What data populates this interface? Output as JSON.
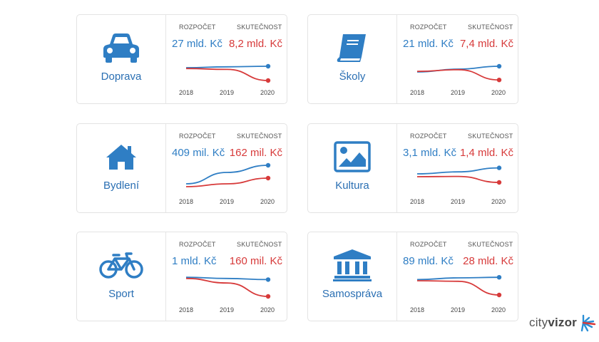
{
  "headers": {
    "budget": "ROZPOČET",
    "actual": "SKUTEČNOST"
  },
  "years": [
    "2018",
    "2019",
    "2020"
  ],
  "colors": {
    "budget": "#2f7ec4",
    "actual": "#d73a3a",
    "icon": "#2f7ec4"
  },
  "cards": [
    {
      "title": "Doprava",
      "icon": "car-icon",
      "budget": "27 mld. Kč",
      "actual": "8,2 mld. Kč",
      "budget_series": [
        0.55,
        0.58,
        0.6
      ],
      "actual_series": [
        0.52,
        0.49,
        0.1
      ]
    },
    {
      "title": "Školy",
      "icon": "book-icon",
      "budget": "21 mld. Kč",
      "actual": "7,4 mld. Kč",
      "budget_series": [
        0.4,
        0.5,
        0.6
      ],
      "actual_series": [
        0.42,
        0.48,
        0.12
      ]
    },
    {
      "title": "Bydlení",
      "icon": "house-icon",
      "budget": "409 mil. Kč",
      "actual": "162 mil. Kč",
      "budget_series": [
        0.3,
        0.7,
        0.95
      ],
      "actual_series": [
        0.2,
        0.3,
        0.5
      ]
    },
    {
      "title": "Kultura",
      "icon": "picture-icon",
      "budget": "3,1 mld. Kč",
      "actual": "1,4 mld. Kč",
      "budget_series": [
        0.65,
        0.72,
        0.86
      ],
      "actual_series": [
        0.55,
        0.56,
        0.35
      ]
    },
    {
      "title": "Sport",
      "icon": "bicycle-icon",
      "budget": "1 mld. Kč",
      "actual": "160 mil. Kč",
      "budget_series": [
        0.82,
        0.78,
        0.74
      ],
      "actual_series": [
        0.78,
        0.62,
        0.15
      ]
    },
    {
      "title": "Samospráva",
      "icon": "government-building-icon",
      "budget": "89 mld. Kč",
      "actual": "28 mld. Kč",
      "budget_series": [
        0.74,
        0.8,
        0.82
      ],
      "actual_series": [
        0.7,
        0.68,
        0.2
      ]
    }
  ],
  "logo": {
    "text_plain": "city",
    "text_bold": "vizor"
  }
}
